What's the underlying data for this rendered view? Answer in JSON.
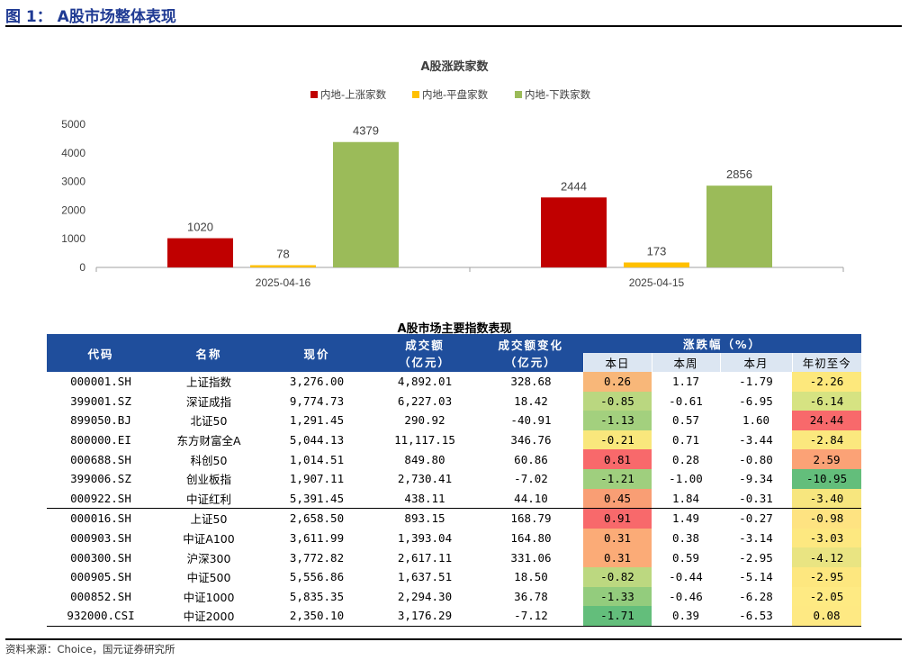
{
  "figure_title": "图 1： A股市场整体表现",
  "source_note": "资料来源：Choice，国元证券研究所",
  "chart_data": {
    "type": "bar",
    "title": "A股涨跌家数",
    "categories": [
      "2025-04-16",
      "2025-04-15"
    ],
    "series": [
      {
        "name": "内地-上涨家数",
        "color": "#c00000",
        "values": [
          1020,
          2444
        ]
      },
      {
        "name": "内地-平盘家数",
        "color": "#ffc000",
        "values": [
          78,
          173
        ]
      },
      {
        "name": "内地-下跌家数",
        "color": "#9bbb59",
        "values": [
          4379,
          2856
        ]
      }
    ],
    "yticks": [
      0,
      1000,
      2000,
      3000,
      4000,
      5000
    ],
    "ylim": [
      0,
      5000
    ],
    "xlabel": "",
    "ylabel": "",
    "legend": "top"
  },
  "table": {
    "title": "A股市场主要指数表现",
    "headers": {
      "code": "代码",
      "name": "名称",
      "price": "现价",
      "volume_l1": "成交额",
      "volume_l2": "（亿元）",
      "vchange_l1": "成交额变化",
      "vchange_l2": "（亿元）",
      "pct": "涨跌幅（%）",
      "day": "本日",
      "week": "本周",
      "month": "本月",
      "ytd": "年初至今"
    },
    "rows": [
      {
        "code": "000001.SH",
        "name": "上证指数",
        "price": "3,276.00",
        "volume": "4,892.01",
        "vchange": "328.68",
        "day": "0.26",
        "week": "1.17",
        "month": "-1.79",
        "ytd": "-2.26",
        "day_color": "#f8b779",
        "ytd_color": "#fde87c"
      },
      {
        "code": "399001.SZ",
        "name": "深证成指",
        "price": "9,774.73",
        "volume": "6,227.03",
        "vchange": "18.42",
        "day": "-0.85",
        "week": "-0.61",
        "month": "-6.95",
        "ytd": "-6.14",
        "day_color": "#bad780",
        "ytd_color": "#d6e382"
      },
      {
        "code": "899050.BJ",
        "name": "北证50",
        "price": "1,291.45",
        "volume": "290.92",
        "vchange": "-40.91",
        "day": "-1.13",
        "week": "0.57",
        "month": "1.60",
        "ytd": "24.44",
        "day_color": "#a3d07e",
        "ytd_color": "#f8696b"
      },
      {
        "code": "800000.EI",
        "name": "东方财富全A",
        "price": "5,044.13",
        "volume": "11,117.15",
        "vchange": "346.76",
        "day": "-0.21",
        "week": "0.71",
        "month": "-3.44",
        "ytd": "-2.84",
        "day_color": "#f9e77c",
        "ytd_color": "#fbe87e"
      },
      {
        "code": "000688.SH",
        "name": "科创50",
        "price": "1,014.51",
        "volume": "849.80",
        "vchange": "60.86",
        "day": "0.81",
        "week": "0.28",
        "month": "-0.80",
        "ytd": "2.59",
        "day_color": "#f8696b",
        "ytd_color": "#fba276"
      },
      {
        "code": "399006.SZ",
        "name": "创业板指",
        "price": "1,907.11",
        "volume": "2,730.41",
        "vchange": "-7.02",
        "day": "-1.21",
        "week": "-1.00",
        "month": "-9.34",
        "ytd": "-10.95",
        "day_color": "#9fcf7e",
        "ytd_color": "#63be7b"
      },
      {
        "code": "000922.SH",
        "name": "中证红利",
        "price": "5,391.45",
        "volume": "438.11",
        "vchange": "44.10",
        "day": "0.45",
        "week": "1.84",
        "month": "-0.31",
        "ytd": "-3.40",
        "day_color": "#f99e74",
        "ytd_color": "#f7e67e"
      },
      {
        "code": "000016.SH",
        "name": "上证50",
        "price": "2,658.50",
        "volume": "893.15",
        "vchange": "168.79",
        "day": "0.91",
        "week": "1.49",
        "month": "-0.27",
        "ytd": "-0.98",
        "day_color": "#f8696b",
        "ytd_color": "#fee381"
      },
      {
        "code": "000903.SH",
        "name": "中证A100",
        "price": "3,611.99",
        "volume": "1,393.04",
        "vchange": "164.80",
        "day": "0.31",
        "week": "0.38",
        "month": "-3.14",
        "ytd": "-3.03",
        "day_color": "#fbab77",
        "ytd_color": "#fde880"
      },
      {
        "code": "000300.SH",
        "name": "沪深300",
        "price": "3,772.82",
        "volume": "2,617.11",
        "vchange": "331.06",
        "day": "0.31",
        "week": "0.59",
        "month": "-2.95",
        "ytd": "-4.12",
        "day_color": "#fbab77",
        "ytd_color": "#e9e482"
      },
      {
        "code": "000905.SH",
        "name": "中证500",
        "price": "5,556.86",
        "volume": "1,637.51",
        "vchange": "18.50",
        "day": "-0.82",
        "week": "-0.44",
        "month": "-5.14",
        "ytd": "-2.95",
        "day_color": "#bcd880",
        "ytd_color": "#fde77f"
      },
      {
        "code": "000852.SH",
        "name": "中证1000",
        "price": "5,835.35",
        "volume": "2,294.30",
        "vchange": "36.78",
        "day": "-1.33",
        "week": "-0.46",
        "month": "-6.28",
        "ytd": "-2.05",
        "day_color": "#93cc7d",
        "ytd_color": "#feea83"
      },
      {
        "code": "932000.CSI",
        "name": "中证2000",
        "price": "2,350.10",
        "volume": "3,176.29",
        "vchange": "-7.12",
        "day": "-1.71",
        "week": "0.39",
        "month": "-6.53",
        "ytd": "0.08",
        "day_color": "#63be7b",
        "ytd_color": "#fee983"
      }
    ]
  }
}
